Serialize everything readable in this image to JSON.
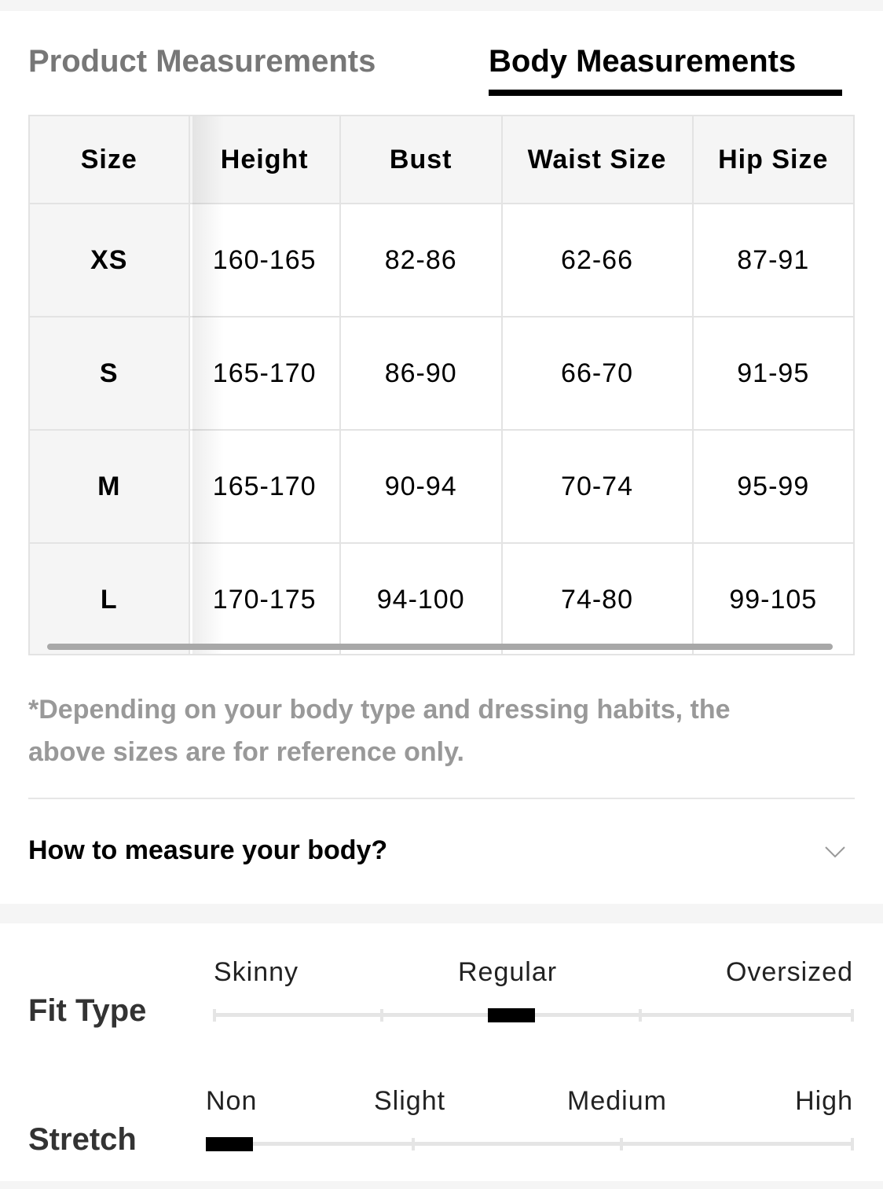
{
  "tabs": [
    {
      "label": "Product Measurements",
      "active": false
    },
    {
      "label": "Body Measurements",
      "active": true
    }
  ],
  "table": {
    "headers": [
      "Size",
      "Height",
      "Bust",
      "Waist Size",
      "Hip Size"
    ],
    "rows": [
      [
        "XS",
        "160-165",
        "82-86",
        "62-66",
        "87-91"
      ],
      [
        "S",
        "165-170",
        "86-90",
        "66-70",
        "91-95"
      ],
      [
        "M",
        "165-170",
        "90-94",
        "70-74",
        "95-99"
      ],
      [
        "L",
        "170-175",
        "94-100",
        "74-80",
        "99-105"
      ]
    ]
  },
  "note": "*Depending on your body type and dressing habits, the above sizes are for reference only.",
  "how_to_measure": {
    "label": "How to measure your body?",
    "icon": "chevron-down-icon"
  },
  "fit_type": {
    "label": "Fit Type",
    "options": [
      "Skinny",
      "Regular",
      "Oversized"
    ],
    "selected": "Regular"
  },
  "stretch": {
    "label": "Stretch",
    "options": [
      "Non",
      "Slight",
      "Medium",
      "High"
    ],
    "selected": "Non"
  }
}
